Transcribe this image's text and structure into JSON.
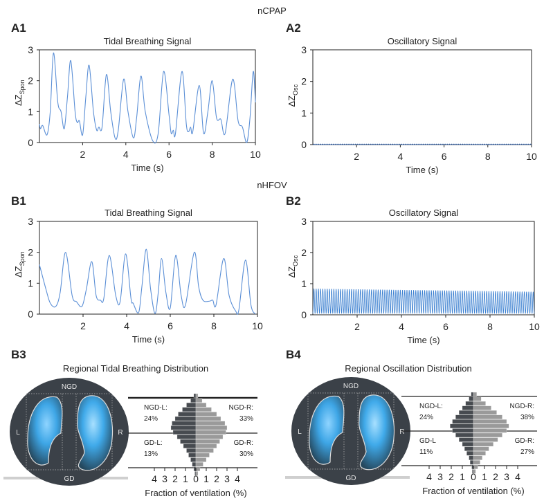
{
  "sections": {
    "ncpap": "nCPAP",
    "nhfov": "nHFOV"
  },
  "chart_data": [
    {
      "id": "A1",
      "type": "line",
      "title": "Tidal Breathing Signal",
      "xlabel": "Time (s)",
      "ylabel": "ΔZ",
      "ylabel_sub": "Spon",
      "xlim": [
        0,
        10
      ],
      "ylim": [
        0,
        3
      ],
      "xticks": [
        "2",
        "4",
        "6",
        "8",
        "10"
      ],
      "yticks": [
        "0",
        "1",
        "2",
        "3"
      ],
      "color": "#5b8fd6",
      "points": [
        [
          0,
          0.6
        ],
        [
          0.05,
          0.45
        ],
        [
          0.15,
          0.55
        ],
        [
          0.35,
          0.25
        ],
        [
          0.5,
          1.0
        ],
        [
          0.65,
          2.9
        ],
        [
          0.85,
          1.3
        ],
        [
          1.0,
          1.0
        ],
        [
          1.15,
          0.45
        ],
        [
          1.3,
          1.5
        ],
        [
          1.45,
          2.65
        ],
        [
          1.65,
          1.0
        ],
        [
          1.75,
          0.65
        ],
        [
          1.85,
          0.7
        ],
        [
          2.0,
          0.25
        ],
        [
          2.15,
          1.5
        ],
        [
          2.3,
          2.5
        ],
        [
          2.5,
          1.0
        ],
        [
          2.65,
          0.4
        ],
        [
          2.75,
          0.5
        ],
        [
          2.9,
          0.5
        ],
        [
          3.1,
          2.2
        ],
        [
          3.3,
          1.0
        ],
        [
          3.5,
          0.15
        ],
        [
          3.65,
          0.4
        ],
        [
          3.9,
          2.05
        ],
        [
          4.1,
          1.0
        ],
        [
          4.35,
          0.15
        ],
        [
          4.5,
          0.8
        ],
        [
          4.7,
          2.15
        ],
        [
          4.9,
          1.0
        ],
        [
          5.25,
          0.05
        ],
        [
          5.5,
          0.3
        ],
        [
          5.75,
          2.3
        ],
        [
          6.0,
          0.9
        ],
        [
          6.1,
          0.3
        ],
        [
          6.2,
          0.4
        ],
        [
          6.3,
          0.3
        ],
        [
          6.6,
          2.3
        ],
        [
          6.8,
          0.6
        ],
        [
          6.9,
          0.35
        ],
        [
          7.0,
          0.5
        ],
        [
          7.1,
          0.35
        ],
        [
          7.4,
          1.85
        ],
        [
          7.6,
          0.3
        ],
        [
          7.8,
          1.0
        ],
        [
          8.0,
          2.0
        ],
        [
          8.2,
          0.8
        ],
        [
          8.4,
          0.75
        ],
        [
          8.6,
          0.3
        ],
        [
          8.95,
          2.05
        ],
        [
          9.2,
          0.7
        ],
        [
          9.4,
          0.5
        ],
        [
          9.6,
          0.0
        ],
        [
          9.75,
          0.8
        ],
        [
          9.9,
          2.3
        ],
        [
          10,
          1.3
        ]
      ]
    },
    {
      "id": "A2",
      "type": "line",
      "title": "Oscillatory Signal",
      "xlabel": "Time (s)",
      "ylabel": "ΔZ",
      "ylabel_sub": "Osc",
      "xlim": [
        0,
        10
      ],
      "ylim": [
        0,
        3
      ],
      "xticks": [
        "2",
        "4",
        "6",
        "8",
        "10"
      ],
      "yticks": [
        "0",
        "1",
        "2",
        "3"
      ],
      "color": "#3a6fc0",
      "oscillation": {
        "frequency_hz": 10,
        "amplitude_start": 0.02,
        "amplitude_end": 0.02,
        "baseline": 0
      }
    },
    {
      "id": "B1",
      "type": "line",
      "title": "Tidal Breathing Signal",
      "xlabel": "Time (s)",
      "ylabel": "ΔZ",
      "ylabel_sub": "Spon",
      "xlim": [
        0,
        10
      ],
      "ylim": [
        0,
        3
      ],
      "xticks": [
        "2",
        "4",
        "6",
        "8",
        "10"
      ],
      "yticks": [
        "0",
        "1",
        "2",
        "3"
      ],
      "color": "#5b8fd6",
      "points": [
        [
          0,
          1.6
        ],
        [
          0.3,
          0.8
        ],
        [
          0.5,
          0.35
        ],
        [
          0.75,
          0.25
        ],
        [
          0.95,
          0.7
        ],
        [
          1.2,
          2.0
        ],
        [
          1.5,
          0.6
        ],
        [
          1.7,
          0.4
        ],
        [
          1.95,
          0.25
        ],
        [
          2.15,
          0.8
        ],
        [
          2.4,
          1.7
        ],
        [
          2.6,
          0.6
        ],
        [
          2.8,
          0.45
        ],
        [
          2.95,
          0.5
        ],
        [
          3.2,
          1.9
        ],
        [
          3.5,
          0.6
        ],
        [
          3.7,
          0.4
        ],
        [
          3.95,
          1.95
        ],
        [
          4.2,
          0.5
        ],
        [
          4.3,
          0.35
        ],
        [
          4.55,
          0.05
        ],
        [
          4.7,
          0.9
        ],
        [
          4.9,
          2.1
        ],
        [
          5.1,
          0.8
        ],
        [
          5.3,
          0.02
        ],
        [
          5.45,
          0.7
        ],
        [
          5.6,
          1.8
        ],
        [
          5.8,
          0.7
        ],
        [
          6.0,
          0.2
        ],
        [
          6.25,
          1.9
        ],
        [
          6.5,
          0.6
        ],
        [
          6.7,
          0.3
        ],
        [
          7.1,
          2.0
        ],
        [
          7.3,
          0.9
        ],
        [
          7.5,
          0.45
        ],
        [
          7.8,
          0.42
        ],
        [
          7.95,
          0.45
        ],
        [
          8.1,
          0.3
        ],
        [
          8.45,
          1.8
        ],
        [
          8.7,
          0.6
        ],
        [
          9.0,
          0.1
        ],
        [
          9.15,
          0.15
        ],
        [
          9.45,
          1.75
        ],
        [
          9.7,
          0.3
        ],
        [
          9.9,
          0.0
        ]
      ]
    },
    {
      "id": "B2",
      "type": "line",
      "title": "Oscillatory Signal",
      "xlabel": "Time (s)",
      "ylabel": "ΔZ",
      "ylabel_sub": "Osc",
      "xlim": [
        0,
        10
      ],
      "ylim": [
        0,
        3
      ],
      "xticks": [
        "2",
        "4",
        "6",
        "8",
        "10"
      ],
      "yticks": [
        "0",
        "1",
        "2",
        "3"
      ],
      "color": "#3a7fd0",
      "oscillation": {
        "frequency_hz": 10,
        "amplitude_start": 0.8,
        "amplitude_end": 0.7,
        "baseline": 0.04
      }
    },
    {
      "id": "B3",
      "type": "bar",
      "title": "Regional Tidal Breathing Distribution",
      "xlabel": "Fraction of ventilation (%)",
      "xticks": [
        "4",
        "3",
        "2",
        "1",
        "0",
        "1",
        "2",
        "3",
        "4"
      ],
      "lung_labels": {
        "top": "NGD",
        "bottom": "GD",
        "left": "L",
        "right": "R"
      },
      "regions": {
        "ngd_l": {
          "label": "NGD-L:",
          "value": "24%"
        },
        "ngd_r": {
          "label": "NGD-R:",
          "value": "33%"
        },
        "gd_l": {
          "label": "GD-L:",
          "value": "13%"
        },
        "gd_r": {
          "label": "GD-R:",
          "value": "30%"
        }
      },
      "left_profile": [
        0.2,
        0.5,
        0.9,
        1.3,
        1.7,
        2.0,
        2.3,
        2.4,
        2.2,
        1.8,
        1.5,
        1.2,
        0.9,
        0.7,
        0.5,
        0.35,
        0.2,
        0.1
      ],
      "right_profile": [
        0.2,
        0.6,
        1.0,
        1.5,
        2.0,
        2.4,
        2.8,
        3.0,
        2.9,
        2.6,
        2.3,
        2.0,
        1.7,
        1.3,
        1.0,
        0.7,
        0.4,
        0.2
      ]
    },
    {
      "id": "B4",
      "type": "bar",
      "title": "Regional Oscillation Distribution",
      "xlabel": "Fraction of ventilation (%)",
      "xticks": [
        "4",
        "3",
        "2",
        "1",
        "0",
        "1",
        "2",
        "3",
        "4"
      ],
      "lung_labels": {
        "top": "NGD",
        "bottom": "GD",
        "left": "L",
        "right": "R"
      },
      "regions": {
        "ngd_l": {
          "label": "NGD-L:",
          "value": "24%"
        },
        "ngd_r": {
          "label": "NGD-R:",
          "value": "38%"
        },
        "gd_l": {
          "label": "GD-L",
          "value": "11%"
        },
        "gd_r": {
          "label": "GD-R:",
          "value": "27%"
        }
      },
      "left_profile": [
        0.2,
        0.4,
        0.7,
        1.0,
        1.3,
        1.6,
        1.9,
        2.1,
        1.9,
        1.6,
        1.3,
        1.0,
        0.8,
        0.6,
        0.4,
        0.3,
        0.15,
        0.1
      ],
      "right_profile": [
        0.3,
        0.7,
        1.1,
        1.6,
        2.1,
        2.6,
        3.0,
        3.2,
        3.0,
        2.6,
        2.2,
        1.8,
        1.4,
        1.1,
        0.8,
        0.6,
        0.4,
        0.2
      ]
    }
  ]
}
